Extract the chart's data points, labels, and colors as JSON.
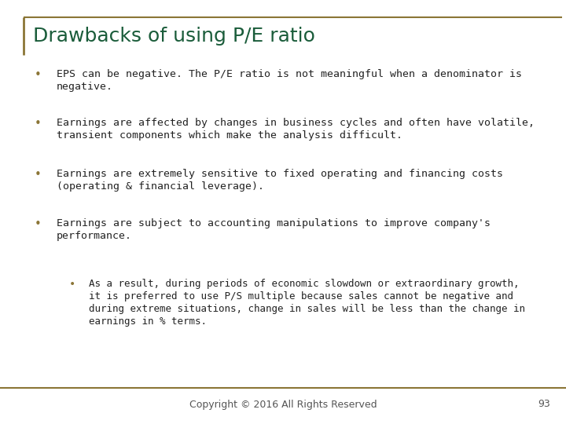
{
  "title": "Drawbacks of using P/E ratio",
  "title_color": "#1A5C3A",
  "title_fontsize": 18,
  "background_color": "#FFFFFF",
  "border_color": "#8B7536",
  "footer_text": "Copyright © 2016 All Rights Reserved",
  "footer_page": "93",
  "footer_fontsize": 9,
  "bullet_color": "#8B7536",
  "text_color": "#222222",
  "body_fontsize": 9.5,
  "sub_bullet_fontsize": 9.0,
  "bullets": [
    {
      "level": 1,
      "line1": "EPS can be negative. The P/E ratio is not meaningful when a denominator is",
      "line2": "negative."
    },
    {
      "level": 1,
      "line1": "Earnings are affected by changes in business cycles and often have volatile,",
      "line2": "transient components which make the analysis difficult."
    },
    {
      "level": 1,
      "line1": "Earnings are extremely sensitive to fixed operating and financing costs",
      "line2": "(operating & financial leverage)."
    },
    {
      "level": 1,
      "line1": "Earnings are subject to accounting manipulations to improve company's",
      "line2": "performance."
    },
    {
      "level": 2,
      "line1": "As a result, during periods of economic slowdown or extraordinary growth,",
      "line2": "it is preferred to use P/S multiple because sales cannot be negative and",
      "line3": "during extreme situations, change in sales will be less than the change in",
      "line4": "earnings in % terms."
    }
  ]
}
